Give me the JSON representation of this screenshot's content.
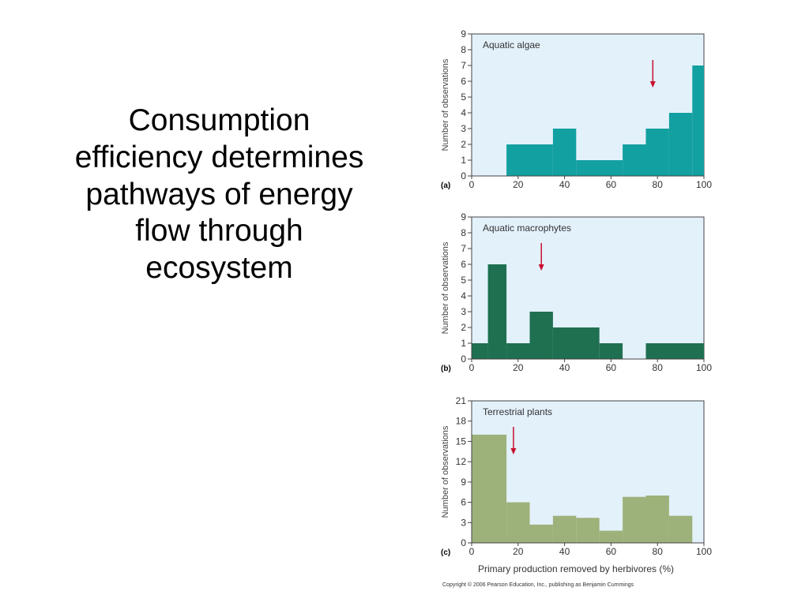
{
  "slide": {
    "title_lines": [
      "Consumption",
      "efficiency determines",
      "pathways of energy",
      "flow through",
      "ecosystem"
    ]
  },
  "copyright": "Copyright © 2006 Pearson Education, Inc., publishing as Benjamin Cummings",
  "chart_data": [
    {
      "type": "bar",
      "panel_letter": "(a)",
      "title": "Aquatic algae",
      "ylabel": "Number of observations",
      "xlabel": "",
      "color": "#13a0a0",
      "bin_edges": [
        0,
        15,
        35,
        45,
        65,
        75,
        85,
        95,
        100
      ],
      "values": [
        0,
        2,
        3,
        1,
        2,
        3,
        4,
        7
      ],
      "xlim": [
        0,
        100
      ],
      "ylim": [
        0,
        9
      ],
      "xticks": [
        0,
        20,
        40,
        60,
        80,
        100
      ],
      "yticks": [
        0,
        1,
        2,
        3,
        4,
        5,
        6,
        7,
        8,
        9
      ],
      "arrow_x": 78,
      "grid": false
    },
    {
      "type": "bar",
      "panel_letter": "(b)",
      "title": "Aquatic macrophytes",
      "ylabel": "Number of observations",
      "xlabel": "",
      "color": "#1f7050",
      "bin_edges": [
        0,
        7,
        15,
        25,
        35,
        55,
        65,
        75,
        100
      ],
      "values": [
        1,
        6,
        1,
        3,
        2,
        1,
        0,
        1
      ],
      "xlim": [
        0,
        100
      ],
      "ylim": [
        0,
        9
      ],
      "xticks": [
        0,
        20,
        40,
        60,
        80,
        100
      ],
      "yticks": [
        0,
        1,
        2,
        3,
        4,
        5,
        6,
        7,
        8,
        9
      ],
      "arrow_x": 30,
      "grid": false
    },
    {
      "type": "bar",
      "panel_letter": "(c)",
      "title": "Terrestrial plants",
      "ylabel": "Number of observations",
      "xlabel": "Primary production removed by herbivores (%)",
      "color": "#9db17a",
      "bin_edges": [
        0,
        15,
        25,
        35,
        45,
        55,
        65,
        75,
        85,
        95
      ],
      "values": [
        16,
        6,
        2.7,
        4,
        3.7,
        1.8,
        6.8,
        7,
        4
      ],
      "xlim": [
        0,
        100
      ],
      "ylim": [
        0,
        21
      ],
      "xticks": [
        0,
        20,
        40,
        60,
        80,
        100
      ],
      "yticks": [
        0,
        3,
        6,
        9,
        12,
        15,
        18,
        21
      ],
      "arrow_x": 18,
      "grid": false
    }
  ]
}
